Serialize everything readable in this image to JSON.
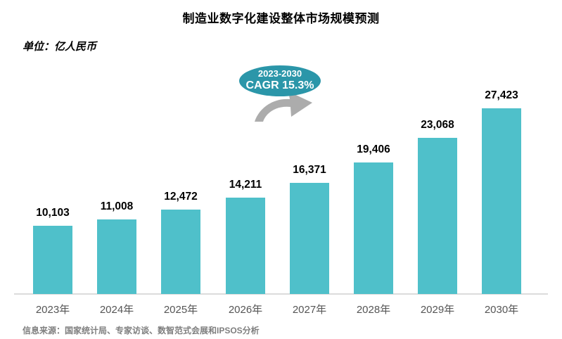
{
  "title": "制造业数字化建设整体市场规模预测",
  "unit_label": "单位：亿人民币",
  "badge": {
    "line1": "2023-2030",
    "line2": "CAGR 15.3%"
  },
  "footer": "信息来源：国家统计局、专家访谈、数智范式会展和IPSOS分析",
  "colors": {
    "bar_fill": "#4fc0ca",
    "badge_fill": "#2b96a9",
    "arrow_gray": "#acacac",
    "axis_line": "#dcdcdc",
    "category_text": "#555555",
    "footer_text": "#7f7f7f",
    "title_text": "#000000"
  },
  "chart_data": {
    "type": "bar",
    "title": "制造业数字化建设整体市场规模预测",
    "xlabel": "",
    "ylabel": "亿人民币",
    "categories": [
      "2023年",
      "2024年",
      "2025年",
      "2026年",
      "2027年",
      "2028年",
      "2029年",
      "2030年"
    ],
    "values": [
      10103,
      11008,
      12472,
      14211,
      16371,
      19406,
      23068,
      27423
    ],
    "value_labels": [
      "10,103",
      "11,008",
      "12,472",
      "14,211",
      "16,371",
      "19,406",
      "23,068",
      "27,423"
    ],
    "ylim": [
      0,
      27423
    ],
    "grid": false,
    "legend": false,
    "data_labels": true,
    "annotation": "2023-2030 CAGR 15.3%"
  }
}
